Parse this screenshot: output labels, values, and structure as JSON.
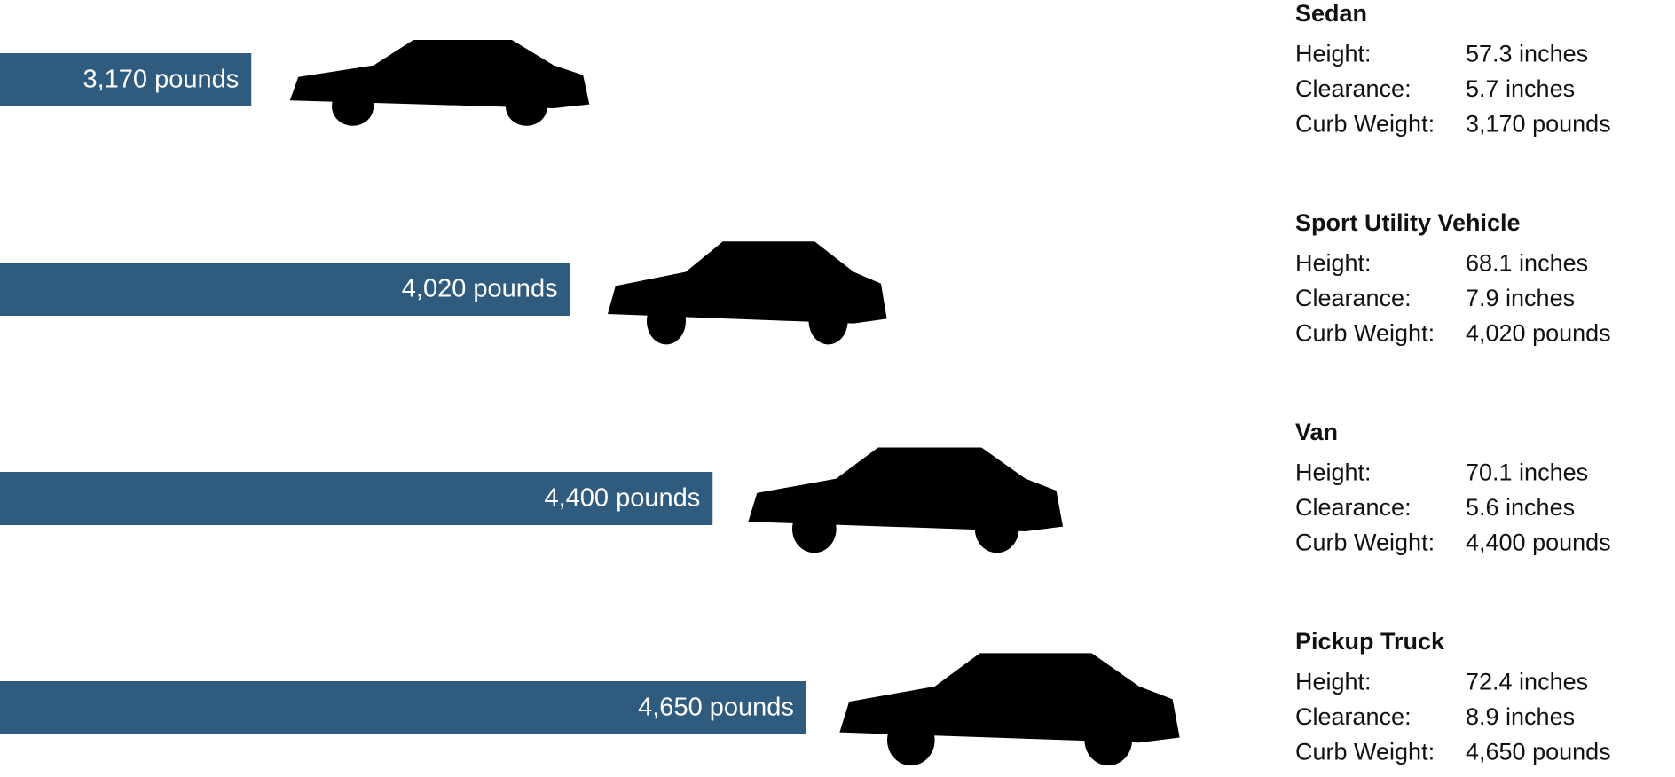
{
  "chart_data": {
    "type": "bar",
    "orientation": "horizontal",
    "categories": [
      "Sedan",
      "Sport Utility Vehicle",
      "Van",
      "Pickup Truck"
    ],
    "values": [
      3170,
      4020,
      4400,
      4650
    ],
    "value_labels": [
      "3,170 pounds",
      "4,020 pounds",
      "4,400 pounds",
      "4,650 pounds"
    ],
    "color": "#2f5b7f",
    "xlim": [
      2500,
      6500
    ],
    "specs": [
      [
        [
          "Height:",
          "57.3 inches"
        ],
        [
          "Clearance:",
          "5.7 inches"
        ],
        [
          "Curb Weight:",
          "3,170 pounds"
        ]
      ],
      [
        [
          "Height:",
          "68.1 inches"
        ],
        [
          "Clearance:",
          "7.9 inches"
        ],
        [
          "Curb Weight:",
          "4,020 pounds"
        ]
      ],
      [
        [
          "Height:",
          "70.1 inches"
        ],
        [
          "Clearance:",
          "5.6 inches"
        ],
        [
          "Curb Weight:",
          "4,400 pounds"
        ]
      ],
      [
        [
          "Height:",
          "72.4 inches"
        ],
        [
          "Clearance:",
          "8.9 inches"
        ],
        [
          "Curb Weight:",
          "4,650 pounds"
        ]
      ]
    ]
  }
}
